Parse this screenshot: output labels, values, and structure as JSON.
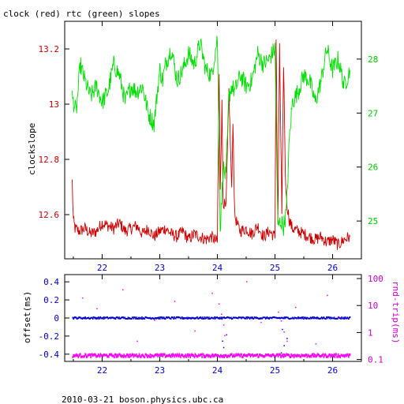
{
  "figure": {
    "title": "clock (red) rtc (green) slopes",
    "footer": "2010-03-21 boson.physics.ubc.ca"
  },
  "colors": {
    "clock": "#cc0000",
    "rtc": "#00dd00",
    "offset": "#0000cc",
    "roundtrip": "#ff00ff",
    "axis": "#000000"
  },
  "chart_data": [
    {
      "type": "line",
      "title": "clock (red) rtc (green) slopes",
      "ylabel": "clockslope",
      "x_ticks": [
        22,
        23,
        24,
        25,
        26
      ],
      "xlim": [
        21.35,
        26.5
      ],
      "grid": false,
      "axes": {
        "left": {
          "label": "clockslope",
          "color": "#cc0000",
          "ticks": [
            12.6,
            12.8,
            13,
            13.2
          ],
          "tick_labels": [
            "12.6",
            "12.8",
            "13",
            "13.2"
          ],
          "range": [
            12.44,
            13.3
          ]
        },
        "right": {
          "label": "",
          "color": "#00cc00",
          "ticks": [
            25,
            26,
            27,
            28
          ],
          "tick_labels": [
            "25",
            "26",
            "27",
            "28"
          ],
          "range": [
            24.3,
            28.7
          ]
        }
      },
      "series": [
        {
          "axis": "left",
          "color": "#cc0000",
          "x": [
            21.48,
            21.5,
            21.53,
            21.6,
            21.7,
            21.8,
            21.9,
            22.0,
            22.1,
            22.2,
            22.3,
            22.4,
            22.5,
            22.6,
            22.7,
            22.8,
            22.9,
            23.0,
            23.1,
            23.2,
            23.3,
            23.4,
            23.5,
            23.6,
            23.7,
            23.8,
            23.9,
            24.0,
            24.03,
            24.05,
            24.08,
            24.1,
            24.15,
            24.2,
            24.25,
            24.27,
            24.3,
            24.35,
            24.4,
            24.5,
            24.6,
            24.7,
            24.8,
            24.9,
            25.0,
            25.02,
            25.05,
            25.08,
            25.12,
            25.15,
            25.18,
            25.2,
            25.25,
            25.3,
            25.4,
            25.5,
            25.6,
            25.7,
            25.8,
            25.9,
            26.0,
            26.1,
            26.2,
            26.3
          ],
          "y": [
            12.72,
            12.58,
            12.55,
            12.54,
            12.55,
            12.53,
            12.54,
            12.57,
            12.56,
            12.55,
            12.57,
            12.54,
            12.55,
            12.56,
            12.53,
            12.55,
            12.52,
            12.54,
            12.55,
            12.53,
            12.52,
            12.54,
            12.51,
            12.53,
            12.52,
            12.51,
            12.52,
            12.5,
            13.1,
            12.7,
            13.0,
            12.65,
            12.62,
            13.05,
            12.68,
            12.95,
            12.6,
            12.56,
            12.54,
            12.55,
            12.53,
            12.56,
            12.52,
            12.54,
            12.52,
            13.25,
            12.55,
            13.2,
            12.6,
            13.15,
            12.75,
            12.65,
            12.58,
            12.55,
            12.54,
            12.53,
            12.52,
            12.51,
            12.52,
            12.5,
            12.51,
            12.49,
            12.51,
            12.52
          ]
        },
        {
          "axis": "right",
          "color": "#00dd00",
          "x": [
            21.48,
            21.55,
            21.62,
            21.7,
            21.8,
            21.9,
            22.0,
            22.1,
            22.2,
            22.3,
            22.4,
            22.5,
            22.6,
            22.7,
            22.8,
            22.9,
            23.0,
            23.05,
            23.1,
            23.2,
            23.3,
            23.4,
            23.5,
            23.6,
            23.7,
            23.8,
            23.9,
            24.0,
            24.05,
            24.1,
            24.15,
            24.2,
            24.25,
            24.3,
            24.4,
            24.5,
            24.6,
            24.7,
            24.8,
            24.9,
            25.0,
            25.05,
            25.1,
            25.15,
            25.2,
            25.25,
            25.3,
            25.4,
            25.5,
            25.6,
            25.7,
            25.8,
            25.9,
            26.0,
            26.1,
            26.2,
            26.3
          ],
          "y": [
            27.3,
            27.0,
            27.9,
            27.6,
            27.3,
            27.5,
            27.2,
            27.4,
            27.9,
            27.7,
            27.2,
            27.5,
            27.4,
            27.5,
            27.0,
            26.8,
            27.8,
            27.6,
            27.9,
            28.2,
            27.6,
            27.8,
            28.1,
            27.9,
            28.3,
            27.8,
            27.7,
            28.4,
            24.8,
            26.0,
            25.8,
            27.3,
            27.5,
            27.4,
            27.7,
            27.5,
            27.6,
            28.1,
            27.9,
            28.0,
            28.2,
            24.9,
            25.0,
            24.9,
            25.2,
            26.5,
            27.2,
            27.4,
            27.7,
            27.6,
            27.2,
            27.6,
            28.2,
            27.8,
            28.0,
            27.5,
            27.8
          ]
        }
      ]
    },
    {
      "type": "scatter",
      "xlim": [
        21.35,
        26.5
      ],
      "x_ticks": [
        22,
        23,
        24,
        25,
        26
      ],
      "grid": false,
      "axes": {
        "left": {
          "label": "offset(ms)",
          "color": "#0000cc",
          "ticks": [
            -0.4,
            -0.2,
            0,
            0.2,
            0.4
          ],
          "tick_labels": [
            "-0.4",
            "-0.2",
            "0",
            "0.2",
            "0.4"
          ],
          "range": [
            -0.48,
            0.48
          ]
        },
        "right": {
          "label": "rnd-trip(ms)",
          "color": "#cc00cc",
          "scale": "log",
          "ticks": [
            0.1,
            1,
            10,
            100
          ],
          "tick_labels": [
            "0.1",
            "1",
            "10",
            "100"
          ],
          "range": [
            0.085,
            140
          ]
        }
      },
      "series": [
        {
          "name": "offset",
          "axis": "left",
          "color": "#0000cc",
          "baseline": 0.0,
          "x_range": [
            21.48,
            26.3
          ],
          "excursions": [
            {
              "x": 24.05,
              "y": -0.4
            },
            {
              "x": 24.1,
              "y": -0.32
            },
            {
              "x": 24.15,
              "y": -0.18
            },
            {
              "x": 24.08,
              "y": -0.25
            },
            {
              "x": 25.1,
              "y": -0.38
            },
            {
              "x": 25.15,
              "y": -0.3
            },
            {
              "x": 25.2,
              "y": -0.22
            },
            {
              "x": 25.12,
              "y": -0.12
            }
          ]
        },
        {
          "name": "roundtrip",
          "axis": "right",
          "color": "#ff00ff",
          "baseline": 0.14,
          "x_range": [
            21.48,
            26.3
          ],
          "outliers": [
            {
              "x": 21.65,
              "y": 20
            },
            {
              "x": 21.9,
              "y": 8
            },
            {
              "x": 22.35,
              "y": 40
            },
            {
              "x": 22.6,
              "y": 0.5
            },
            {
              "x": 22.9,
              "y": 3
            },
            {
              "x": 23.25,
              "y": 15
            },
            {
              "x": 23.6,
              "y": 1.2
            },
            {
              "x": 23.9,
              "y": 30
            },
            {
              "x": 24.02,
              "y": 12
            },
            {
              "x": 24.06,
              "y": 5
            },
            {
              "x": 24.1,
              "y": 2
            },
            {
              "x": 24.12,
              "y": 0.8
            },
            {
              "x": 24.5,
              "y": 80
            },
            {
              "x": 24.75,
              "y": 2.5
            },
            {
              "x": 25.05,
              "y": 6
            },
            {
              "x": 25.1,
              "y": 2.8
            },
            {
              "x": 25.15,
              "y": 1.1
            },
            {
              "x": 25.2,
              "y": 0.5
            },
            {
              "x": 25.35,
              "y": 9
            },
            {
              "x": 25.7,
              "y": 0.4
            },
            {
              "x": 25.9,
              "y": 25
            },
            {
              "x": 26.1,
              "y": 4
            }
          ]
        }
      ]
    }
  ]
}
